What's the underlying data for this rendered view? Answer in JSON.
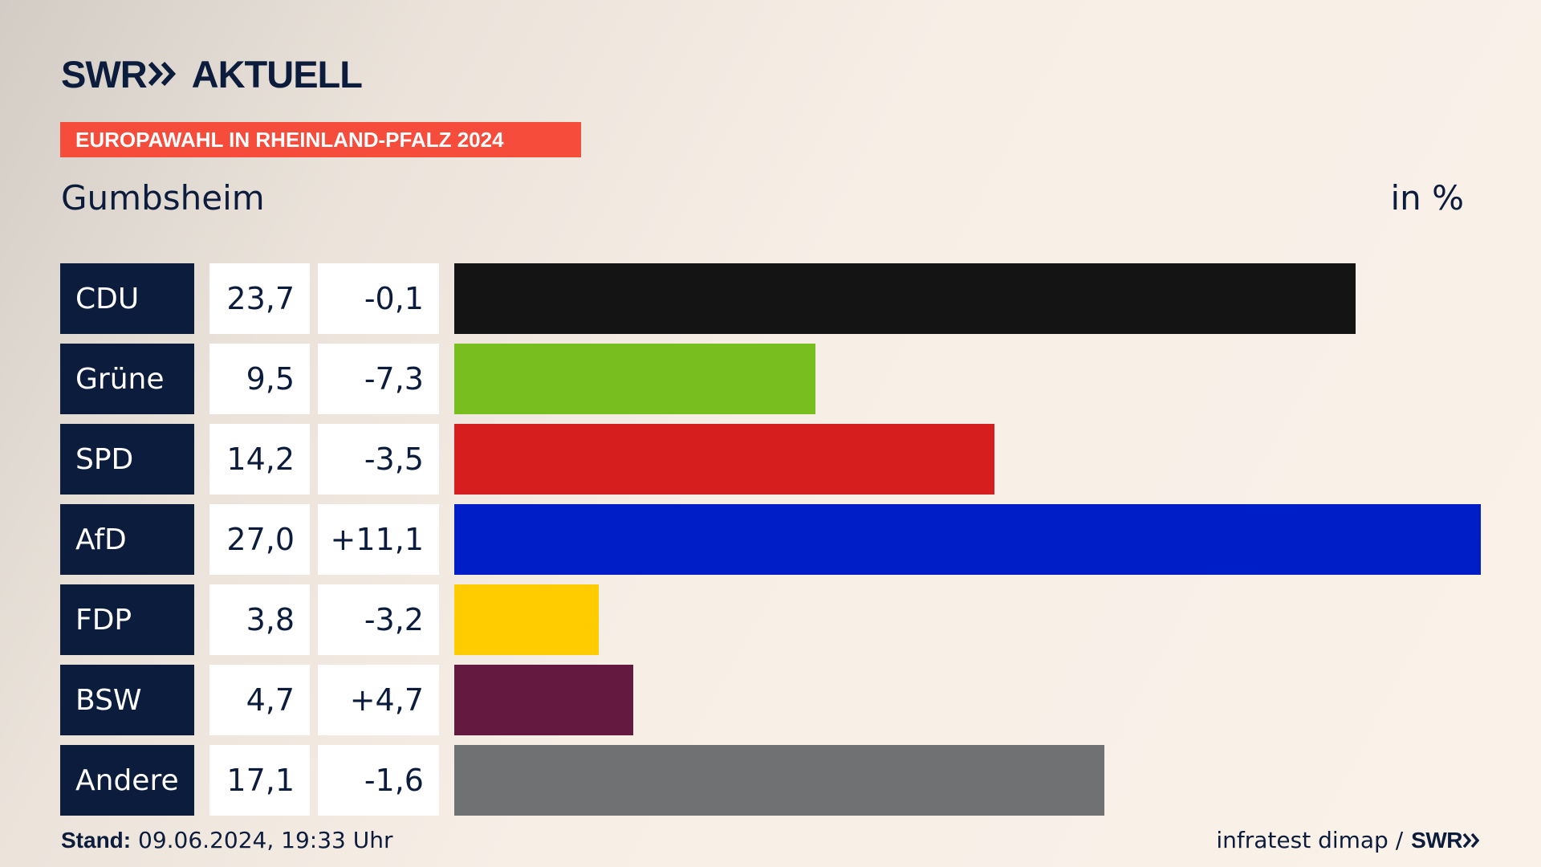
{
  "logo": {
    "brand": "SWR",
    "name": "AKTUELL",
    "footer_brand": "SWR"
  },
  "banner": "EUROPAWAHL IN RHEINLAND-PFALZ 2024",
  "place": "Gumbsheim",
  "unit": "in %",
  "footer": {
    "stand_label": "Stand:",
    "stand_value": " 09.06.2024, 19:33 Uhr",
    "source": "infratest dimap /"
  },
  "chart_data": {
    "type": "bar",
    "orientation": "horizontal",
    "categories": [
      "CDU",
      "Grüne",
      "SPD",
      "AfD",
      "FDP",
      "BSW",
      "Andere"
    ],
    "values": [
      23.7,
      9.5,
      14.2,
      27.0,
      3.8,
      4.7,
      17.1
    ],
    "value_labels": [
      "23,7",
      "9,5",
      "14,2",
      "27,0",
      "3,8",
      "4,7",
      "17,1"
    ],
    "diff_labels": [
      "-0,1",
      "-7,3",
      "-3,5",
      "+11,1",
      "-3,2",
      "+4,7",
      "-1,6"
    ],
    "colors": [
      "#141414",
      "#78be1e",
      "#d61e1e",
      "#001ec8",
      "#ffcc00",
      "#641941",
      "#707173"
    ],
    "xlim": [
      0,
      27.0
    ]
  }
}
